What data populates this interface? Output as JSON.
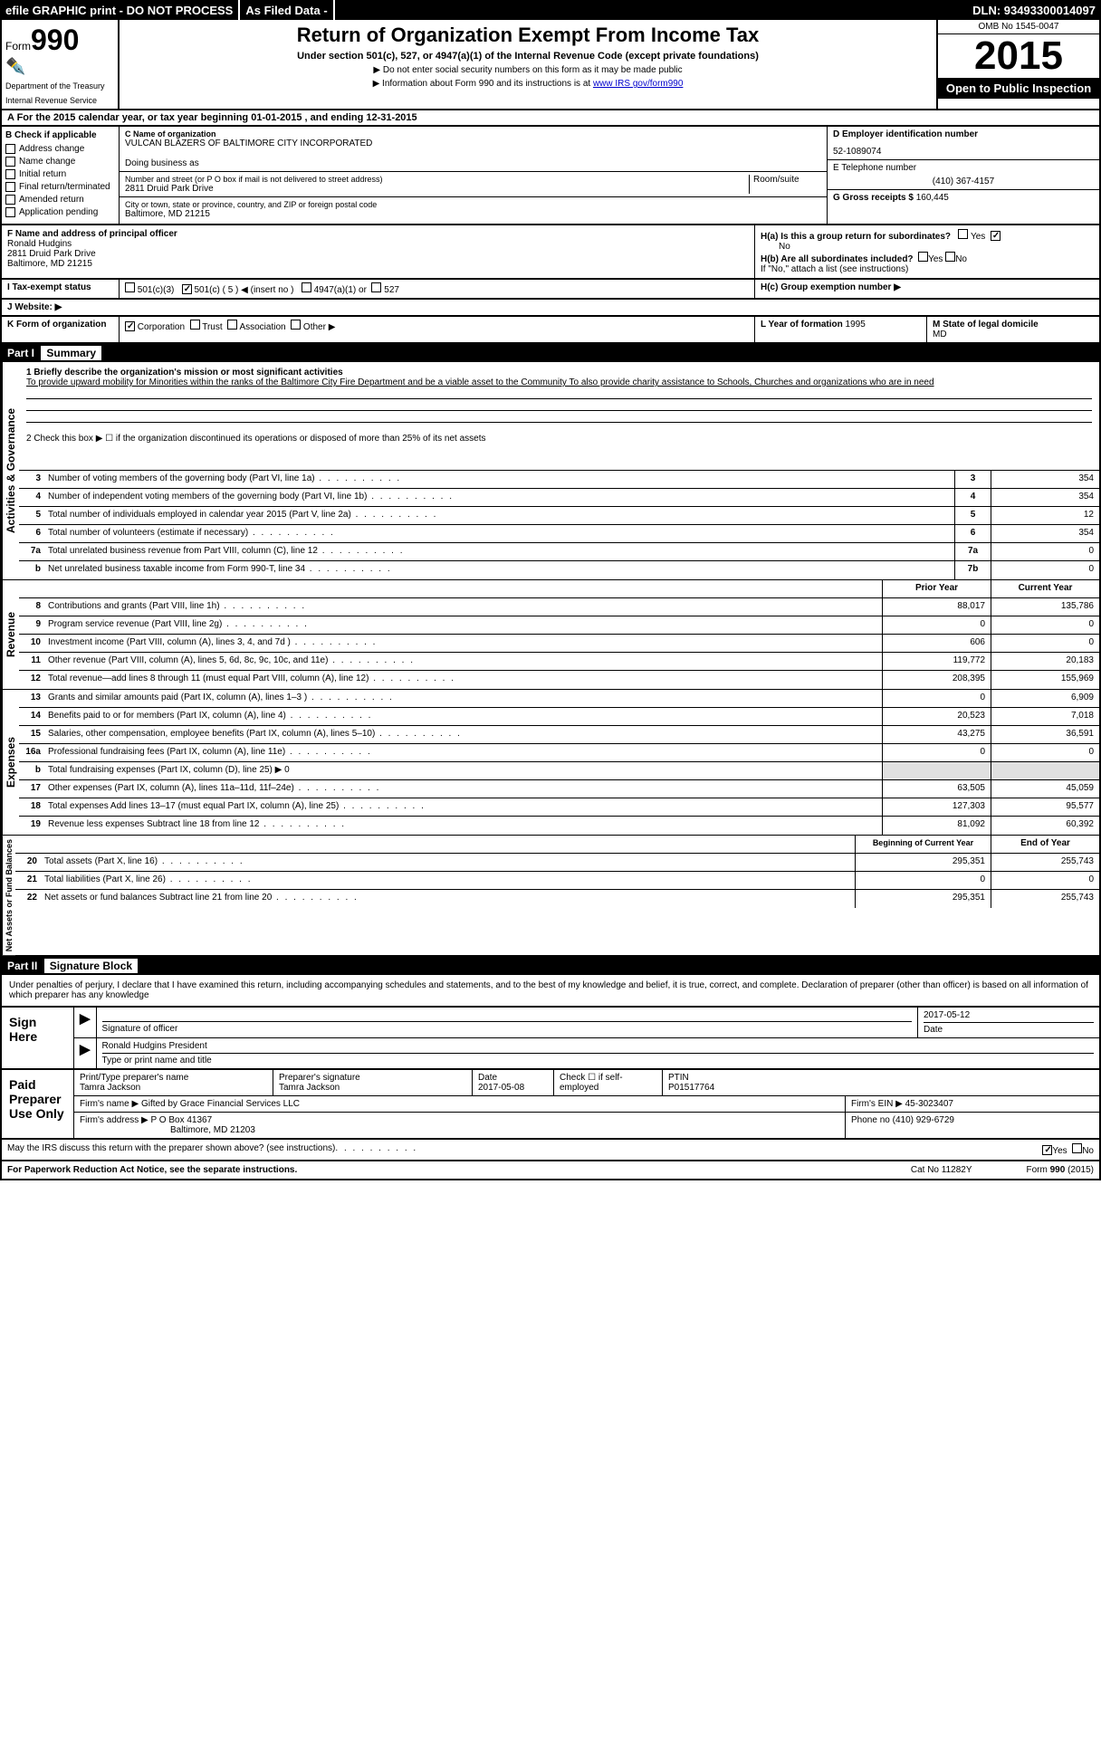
{
  "topbar": {
    "efile": "efile GRAPHIC print - DO NOT PROCESS",
    "asfiled": "As Filed Data -",
    "dln": "DLN: 93493300014097"
  },
  "header": {
    "form_prefix": "Form",
    "form_num": "990",
    "dept1": "Department of the Treasury",
    "dept2": "Internal Revenue Service",
    "title": "Return of Organization Exempt From Income Tax",
    "subtitle": "Under section 501(c), 527, or 4947(a)(1) of the Internal Revenue Code (except private foundations)",
    "note1": "▶ Do not enter social security numbers on this form as it may be made public",
    "note2": "▶ Information about Form 990 and its instructions is at ",
    "note2_link": "www IRS gov/form990",
    "omb": "OMB No 1545-0047",
    "year": "2015",
    "inspection": "Open to Public Inspection"
  },
  "row_a": {
    "prefix": "A  For the 2015 calendar year, or tax year beginning ",
    "begin": "01-01-2015",
    "mid": " , and ending ",
    "end": "12-31-2015"
  },
  "col_b": {
    "header": "B Check if applicable",
    "items": [
      "Address change",
      "Name change",
      "Initial return",
      "Final return/terminated",
      "Amended return",
      "Application pending"
    ]
  },
  "col_c": {
    "name_label": "C Name of organization",
    "name": "VULCAN BLAZERS OF BALTIMORE CITY INCORPORATED",
    "dba_label": "Doing business as",
    "dba": "",
    "addr_label": "Number and street (or P O  box if mail is not delivered to street address)",
    "room_label": "Room/suite",
    "addr": "2811 Druid Park Drive",
    "city_label": "City or town, state or province, country, and ZIP or foreign postal code",
    "city": "Baltimore, MD  21215"
  },
  "col_de": {
    "d_label": "D Employer identification number",
    "d_val": "52-1089074",
    "e_label": "E Telephone number",
    "e_val": "(410) 367-4157",
    "g_label": "G Gross receipts $",
    "g_val": "160,445"
  },
  "row_f": {
    "label": "F Name and address of principal officer",
    "name": "Ronald Hudgins",
    "addr1": "2811 Druid Park Drive",
    "addr2": "Baltimore, MD  21215"
  },
  "row_h": {
    "ha": "H(a) Is this a group return for subordinates?",
    "ha_no": "No",
    "yes": "Yes",
    "no_chk": "✓",
    "hb": "H(b) Are all subordinates included?",
    "hb_note": "If \"No,\" attach a list (see instructions)",
    "hc": "H(c)  Group exemption number ▶"
  },
  "row_i": {
    "label": "I  Tax-exempt status",
    "opts": [
      "501(c)(3)",
      "501(c) ( 5 ) ◀ (insert no )",
      "4947(a)(1) or",
      "527"
    ],
    "checked": 1
  },
  "row_j": {
    "label": "J  Website: ▶"
  },
  "row_k": {
    "label": "K Form of organization",
    "opts": [
      "Corporation",
      "Trust",
      "Association",
      "Other ▶"
    ],
    "checked": 0,
    "l_label": "L Year of formation",
    "l_val": "1995",
    "m_label": "M State of legal domicile",
    "m_val": "MD"
  },
  "part1": {
    "header": "Part I",
    "title": "Summary",
    "q1": "1 Briefly describe the organization's mission or most significant activities",
    "mission": "To provide upward mobility for Minorities within the ranks of the Baltimore City Fire Department and be a viable asset to the Community  To also provide charity assistance to Schools, Churches and organizations who are in need",
    "q2": "2 Check this box ▶ ☐ if the organization discontinued its operations or disposed of more than 25% of its net assets",
    "governance_label": "Activities & Governance",
    "revenue_label": "Revenue",
    "expenses_label": "Expenses",
    "netassets_label": "Net Assets or Fund Balances",
    "lines_gov": [
      {
        "n": "3",
        "d": "Number of voting members of the governing body (Part VI, line 1a)",
        "box": "3",
        "v": "354"
      },
      {
        "n": "4",
        "d": "Number of independent voting members of the governing body (Part VI, line 1b)",
        "box": "4",
        "v": "354"
      },
      {
        "n": "5",
        "d": "Total number of individuals employed in calendar year 2015 (Part V, line 2a)",
        "box": "5",
        "v": "12"
      },
      {
        "n": "6",
        "d": "Total number of volunteers (estimate if necessary)",
        "box": "6",
        "v": "354"
      },
      {
        "n": "7a",
        "d": "Total unrelated business revenue from Part VIII, column (C), line 12",
        "box": "7a",
        "v": "0"
      },
      {
        "n": "b",
        "d": "Net unrelated business taxable income from Form 990-T, line 34",
        "box": "7b",
        "v": "0"
      }
    ],
    "col_headers": {
      "prior": "Prior Year",
      "current": "Current Year"
    },
    "lines_rev": [
      {
        "n": "8",
        "d": "Contributions and grants (Part VIII, line 1h)",
        "p": "88,017",
        "c": "135,786"
      },
      {
        "n": "9",
        "d": "Program service revenue (Part VIII, line 2g)",
        "p": "0",
        "c": "0"
      },
      {
        "n": "10",
        "d": "Investment income (Part VIII, column (A), lines 3, 4, and 7d )",
        "p": "606",
        "c": "0"
      },
      {
        "n": "11",
        "d": "Other revenue (Part VIII, column (A), lines 5, 6d, 8c, 9c, 10c, and 11e)",
        "p": "119,772",
        "c": "20,183"
      },
      {
        "n": "12",
        "d": "Total revenue—add lines 8 through 11 (must equal Part VIII, column (A), line 12)",
        "p": "208,395",
        "c": "155,969"
      }
    ],
    "lines_exp": [
      {
        "n": "13",
        "d": "Grants and similar amounts paid (Part IX, column (A), lines 1–3 )",
        "p": "0",
        "c": "6,909"
      },
      {
        "n": "14",
        "d": "Benefits paid to or for members (Part IX, column (A), line 4)",
        "p": "20,523",
        "c": "7,018"
      },
      {
        "n": "15",
        "d": "Salaries, other compensation, employee benefits (Part IX, column (A), lines 5–10)",
        "p": "43,275",
        "c": "36,591"
      },
      {
        "n": "16a",
        "d": "Professional fundraising fees (Part IX, column (A), line 11e)",
        "p": "0",
        "c": "0"
      },
      {
        "n": "b",
        "d": "Total fundraising expenses (Part IX, column (D), line 25) ▶ 0",
        "p": "",
        "c": ""
      },
      {
        "n": "17",
        "d": "Other expenses (Part IX, column (A), lines 11a–11d, 11f–24e)",
        "p": "63,505",
        "c": "45,059"
      },
      {
        "n": "18",
        "d": "Total expenses Add lines 13–17 (must equal Part IX, column (A), line 25)",
        "p": "127,303",
        "c": "95,577"
      },
      {
        "n": "19",
        "d": "Revenue less expenses Subtract line 18 from line 12",
        "p": "81,092",
        "c": "60,392"
      }
    ],
    "col_headers2": {
      "begin": "Beginning of Current Year",
      "end": "End of Year"
    },
    "lines_net": [
      {
        "n": "20",
        "d": "Total assets (Part X, line 16)",
        "p": "295,351",
        "c": "255,743"
      },
      {
        "n": "21",
        "d": "Total liabilities (Part X, line 26)",
        "p": "0",
        "c": "0"
      },
      {
        "n": "22",
        "d": "Net assets or fund balances Subtract line 21 from line 20",
        "p": "295,351",
        "c": "255,743"
      }
    ]
  },
  "part2": {
    "header": "Part II",
    "title": "Signature Block",
    "text": "Under penalties of perjury, I declare that I have examined this return, including accompanying schedules and statements, and to the best of my knowledge and belief, it is true, correct, and complete. Declaration of preparer (other than officer) is based on all information of which preparer has any knowledge"
  },
  "sign": {
    "label": "Sign Here",
    "sig_label": "Signature of officer",
    "date_label": "Date",
    "date": "2017-05-12",
    "name": "Ronald Hudgins President",
    "name_label": "Type or print name and title"
  },
  "paid": {
    "label": "Paid Preparer Use Only",
    "prep_name_label": "Print/Type preparer's name",
    "prep_name": "Tamra Jackson",
    "prep_sig_label": "Preparer's signature",
    "prep_sig": "Tamra Jackson",
    "prep_date_label": "Date",
    "prep_date": "2017-05-08",
    "self_emp": "Check ☐ if self-employed",
    "ptin_label": "PTIN",
    "ptin": "P01517764",
    "firm_name_label": "Firm's name    ▶",
    "firm_name": "Gifted by Grace Financial Services LLC",
    "firm_ein_label": "Firm's EIN ▶",
    "firm_ein": "45-3023407",
    "firm_addr_label": "Firm's address ▶",
    "firm_addr1": "P O Box 41367",
    "firm_addr2": "Baltimore, MD  21203",
    "phone_label": "Phone no",
    "phone": "(410) 929-6729"
  },
  "footer": {
    "discuss": "May the IRS discuss this return with the preparer shown above? (see instructions)",
    "yes": "Yes",
    "no": "No",
    "pra": "For Paperwork Reduction Act Notice, see the separate instructions.",
    "cat": "Cat No 11282Y",
    "form": "Form 990 (2015)"
  }
}
